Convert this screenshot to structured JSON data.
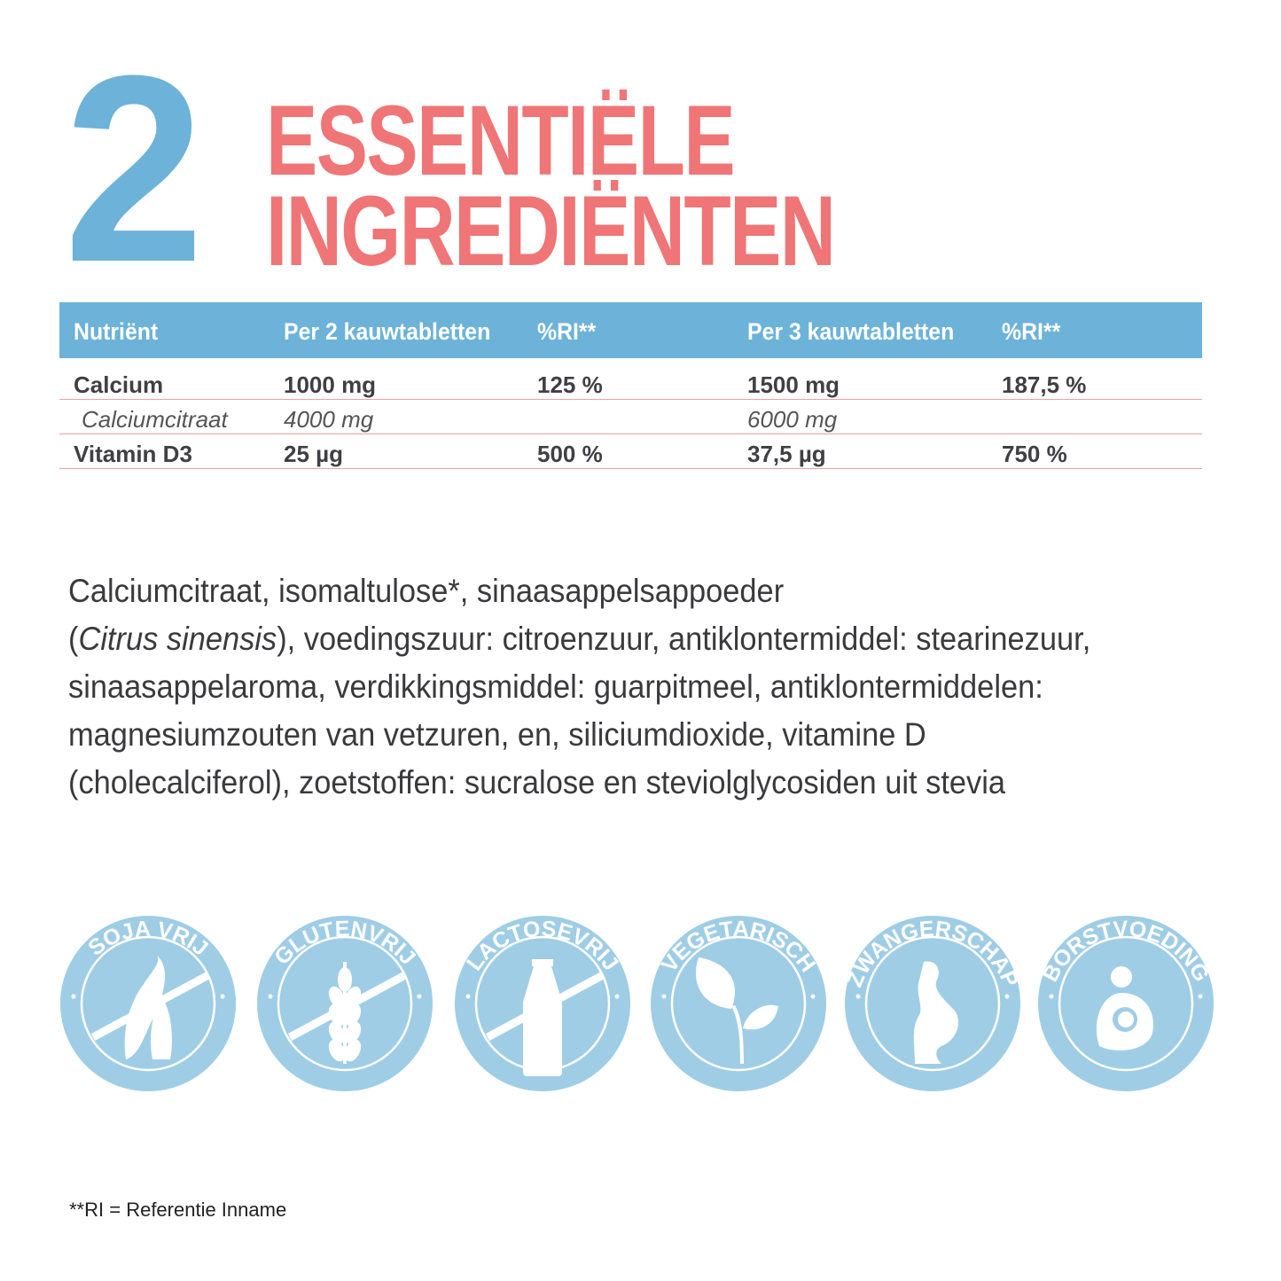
{
  "heading": {
    "number": "2",
    "line1": "ESSENTIËLE",
    "line2": "INGREDIËNTEN"
  },
  "colors": {
    "blue": "#6cb2d9",
    "pink": "#ef7576",
    "badge": "#9fcde6"
  },
  "table": {
    "headers": [
      "Nutriënt",
      "Per 2 kauwtabletten",
      "%RI**",
      "Per 3 kauwtabletten",
      "%RI**"
    ],
    "rows": [
      {
        "style": "bold",
        "cells": [
          "Calcium",
          "1000 mg",
          "125 %",
          "1500 mg",
          "187,5 %"
        ]
      },
      {
        "style": "italic",
        "cells": [
          "Calciumcitraat",
          "4000 mg",
          "",
          "6000 mg",
          ""
        ]
      },
      {
        "style": "bold",
        "cells": [
          "Vitamin D3",
          "25 µg",
          "500 %",
          "37,5 µg",
          "750 %"
        ]
      }
    ]
  },
  "ingredients": {
    "line1": "Calciumcitraat, isomaltulose*, sinaasappelsappoeder",
    "line2_a": "(",
    "line2_italic": "Citrus sinensis",
    "line2_b": "), voedingszuur: citroenzuur, antiklontermiddel: stearinezuur,",
    "line3": "sinaasappelaroma, verdikkingsmiddel: guarpitmeel, antiklontermiddelen:",
    "line4": "magnesiumzouten van vetzuren, en, siliciumdioxide, vitamine D",
    "line5": "(cholecalciferol), zoetstoffen: sucralose en steviolglycosiden uit stevia"
  },
  "badges": [
    {
      "label": "SOJA VRIJ",
      "icon": "soybean-icon",
      "crossed": true
    },
    {
      "label": "GLUTENVRIJ",
      "icon": "wheat-icon",
      "crossed": true
    },
    {
      "label": "LACTOSEVRIJ",
      "icon": "milk-bottle-icon",
      "crossed": true
    },
    {
      "label": "VEGETARISCH",
      "icon": "leaf-sprout-icon",
      "crossed": false
    },
    {
      "label": "ZWANGERSCHAP",
      "icon": "pregnant-icon",
      "crossed": false
    },
    {
      "label": "BORSTVOEDING",
      "icon": "breastfeeding-icon",
      "crossed": false
    }
  ],
  "footnote": "**RI = Referentie Inname"
}
